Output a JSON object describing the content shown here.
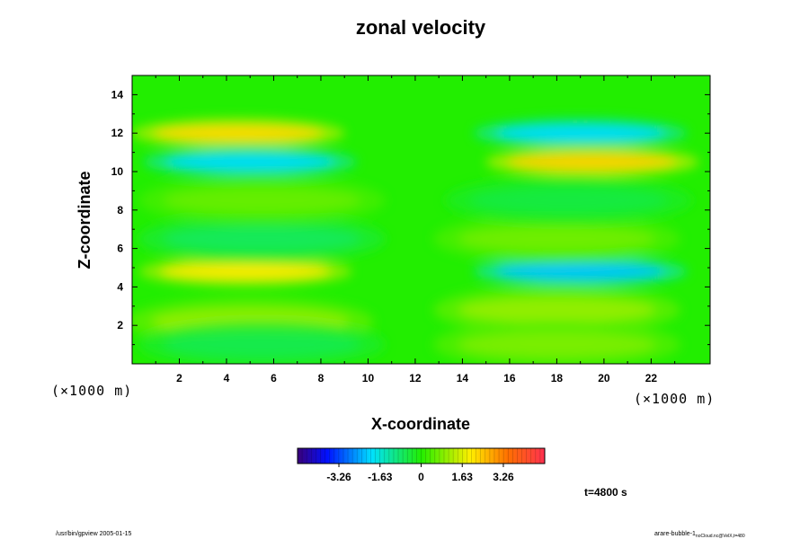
{
  "chart_data": {
    "type": "heatmap",
    "title": "zonal velocity",
    "xlabel": "X-coordinate",
    "ylabel": "Z-coordinate",
    "x_unit": "(×1000 m)",
    "y_unit": "(×1000 m)",
    "xlim": [
      0,
      24.5
    ],
    "ylim": [
      0,
      15
    ],
    "x_ticks": [
      2,
      4,
      6,
      8,
      10,
      12,
      14,
      16,
      18,
      20,
      22
    ],
    "y_ticks": [
      2,
      4,
      6,
      8,
      10,
      12,
      14
    ],
    "x_tick_labels": [
      "2",
      "4",
      "6",
      "8",
      "10",
      "12",
      "14",
      "16",
      "18",
      "20",
      "22"
    ],
    "y_tick_labels": [
      "2",
      "4",
      "6",
      "8",
      "10",
      "12",
      "14"
    ],
    "colorbar": {
      "range": [
        -4.9,
        4.9
      ],
      "tick_values": [
        -3.26,
        -1.63,
        0,
        1.63,
        3.26
      ],
      "tick_labels": [
        "-3.26",
        "-1.63",
        "0",
        "1.63",
        "3.26"
      ]
    },
    "features": [
      {
        "x": 4.5,
        "z": 12.0,
        "value": 2.2
      },
      {
        "x": 5.0,
        "z": 10.5,
        "value": -2.0
      },
      {
        "x": 4.8,
        "z": 4.8,
        "value": 2.0
      },
      {
        "x": 19.0,
        "z": 12.0,
        "value": -2.0
      },
      {
        "x": 19.5,
        "z": 10.5,
        "value": 2.3
      },
      {
        "x": 19.0,
        "z": 4.8,
        "value": -2.2
      },
      {
        "x": 5.5,
        "z": 6.5,
        "value": -0.7
      },
      {
        "x": 18.0,
        "z": 6.5,
        "value": 0.7
      },
      {
        "x": 5.5,
        "z": 8.5,
        "value": 0.6
      },
      {
        "x": 18.5,
        "z": 8.5,
        "value": -0.5
      },
      {
        "x": 5.0,
        "z": 2.2,
        "value": 1.0
      },
      {
        "x": 18.0,
        "z": 2.8,
        "value": 1.0
      },
      {
        "x": 5.5,
        "z": 1.0,
        "value": -0.6
      },
      {
        "x": 18.0,
        "z": 1.0,
        "value": 0.8
      }
    ],
    "annotation_time": "t=4800 s"
  },
  "footer": {
    "left": "/usr/bin/gpview 2005-01-15",
    "right": "arare-bubble-1",
    "right_sub": "noCloud.nc@VelX,t=480"
  }
}
